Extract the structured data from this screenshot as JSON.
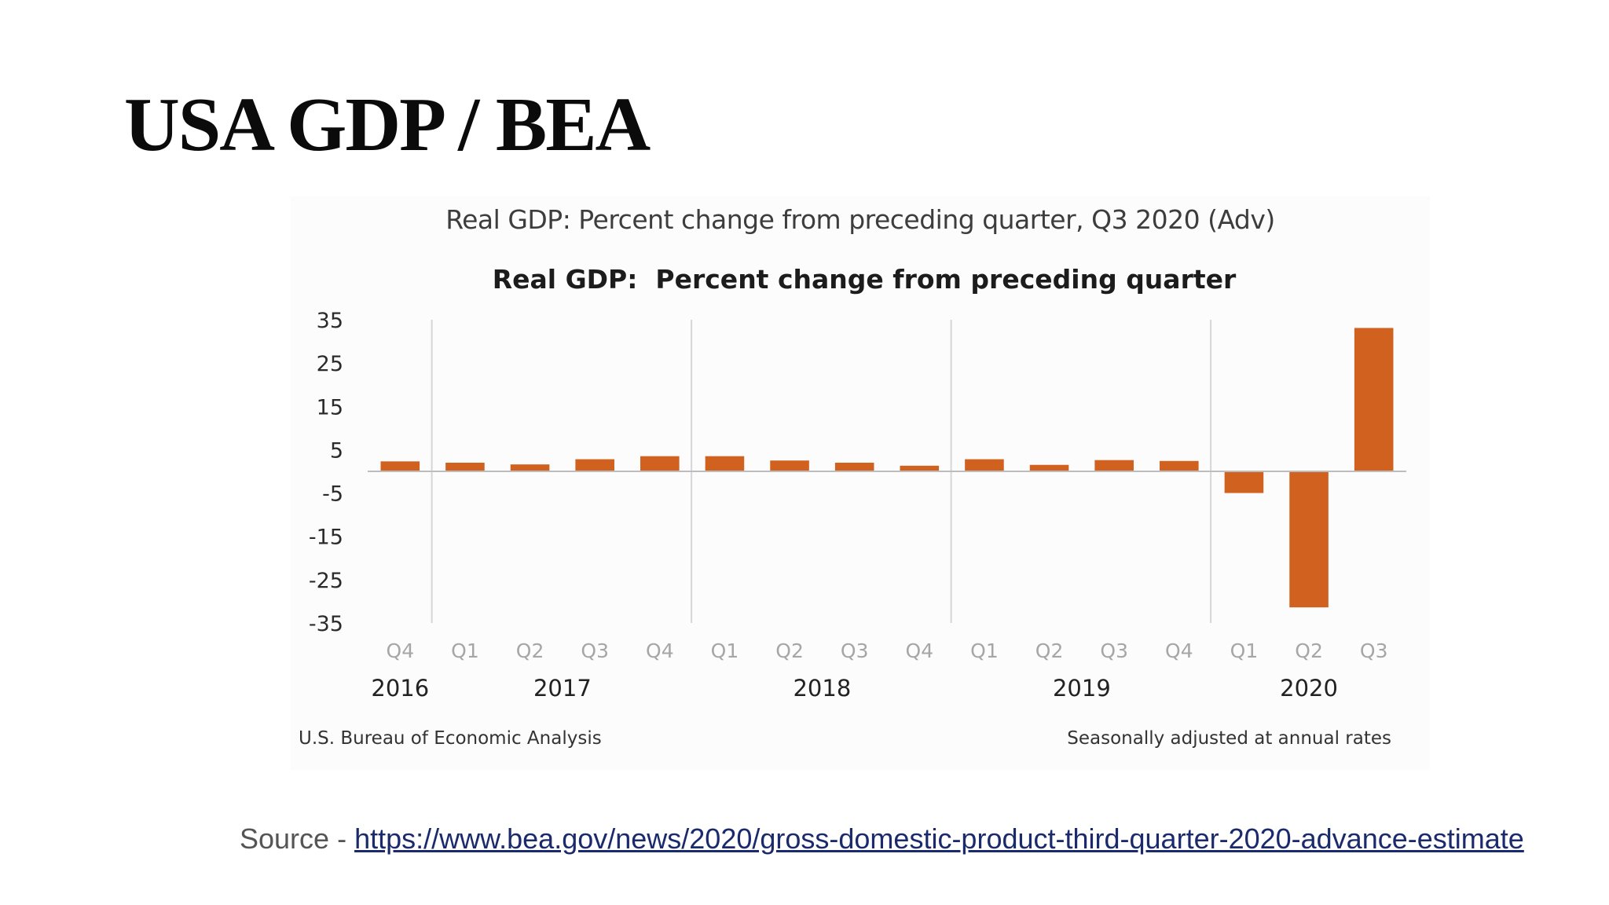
{
  "slide": {
    "title": "USA GDP / BEA",
    "source_prefix": "Source - ",
    "source_url": "https://www.bea.gov/news/2020/gross-domestic-product-third-quarter-2020-advance-estimate"
  },
  "chart_caption": "Real GDP: Percent change from preceding quarter, Q3 2020 (Adv)",
  "chart_data": {
    "type": "bar",
    "title": "Real GDP:  Percent change from preceding quarter",
    "categories": [
      "Q4",
      "Q1",
      "Q2",
      "Q3",
      "Q4",
      "Q1",
      "Q2",
      "Q3",
      "Q4",
      "Q1",
      "Q2",
      "Q3",
      "Q4",
      "Q1",
      "Q2",
      "Q3"
    ],
    "years": [
      {
        "label": "2016",
        "start": 0,
        "end": 0
      },
      {
        "label": "2017",
        "start": 1,
        "end": 4
      },
      {
        "label": "2018",
        "start": 5,
        "end": 8
      },
      {
        "label": "2019",
        "start": 9,
        "end": 12
      },
      {
        "label": "2020",
        "start": 13,
        "end": 15
      }
    ],
    "values": [
      2.3,
      2.0,
      1.6,
      2.8,
      3.5,
      3.5,
      2.5,
      2.0,
      1.3,
      2.8,
      1.5,
      2.6,
      2.4,
      -5.0,
      -31.4,
      33.1
    ],
    "yticks": [
      35,
      25,
      15,
      5,
      -5,
      -15,
      -25,
      -35
    ],
    "ylim": [
      -35,
      35
    ],
    "bar_color": "#d0611f",
    "xlabel": "",
    "ylabel": "",
    "grid": "vertical lines between years",
    "source_note": "U.S. Bureau of Economic Analysis",
    "note": "Seasonally adjusted at annual rates"
  }
}
